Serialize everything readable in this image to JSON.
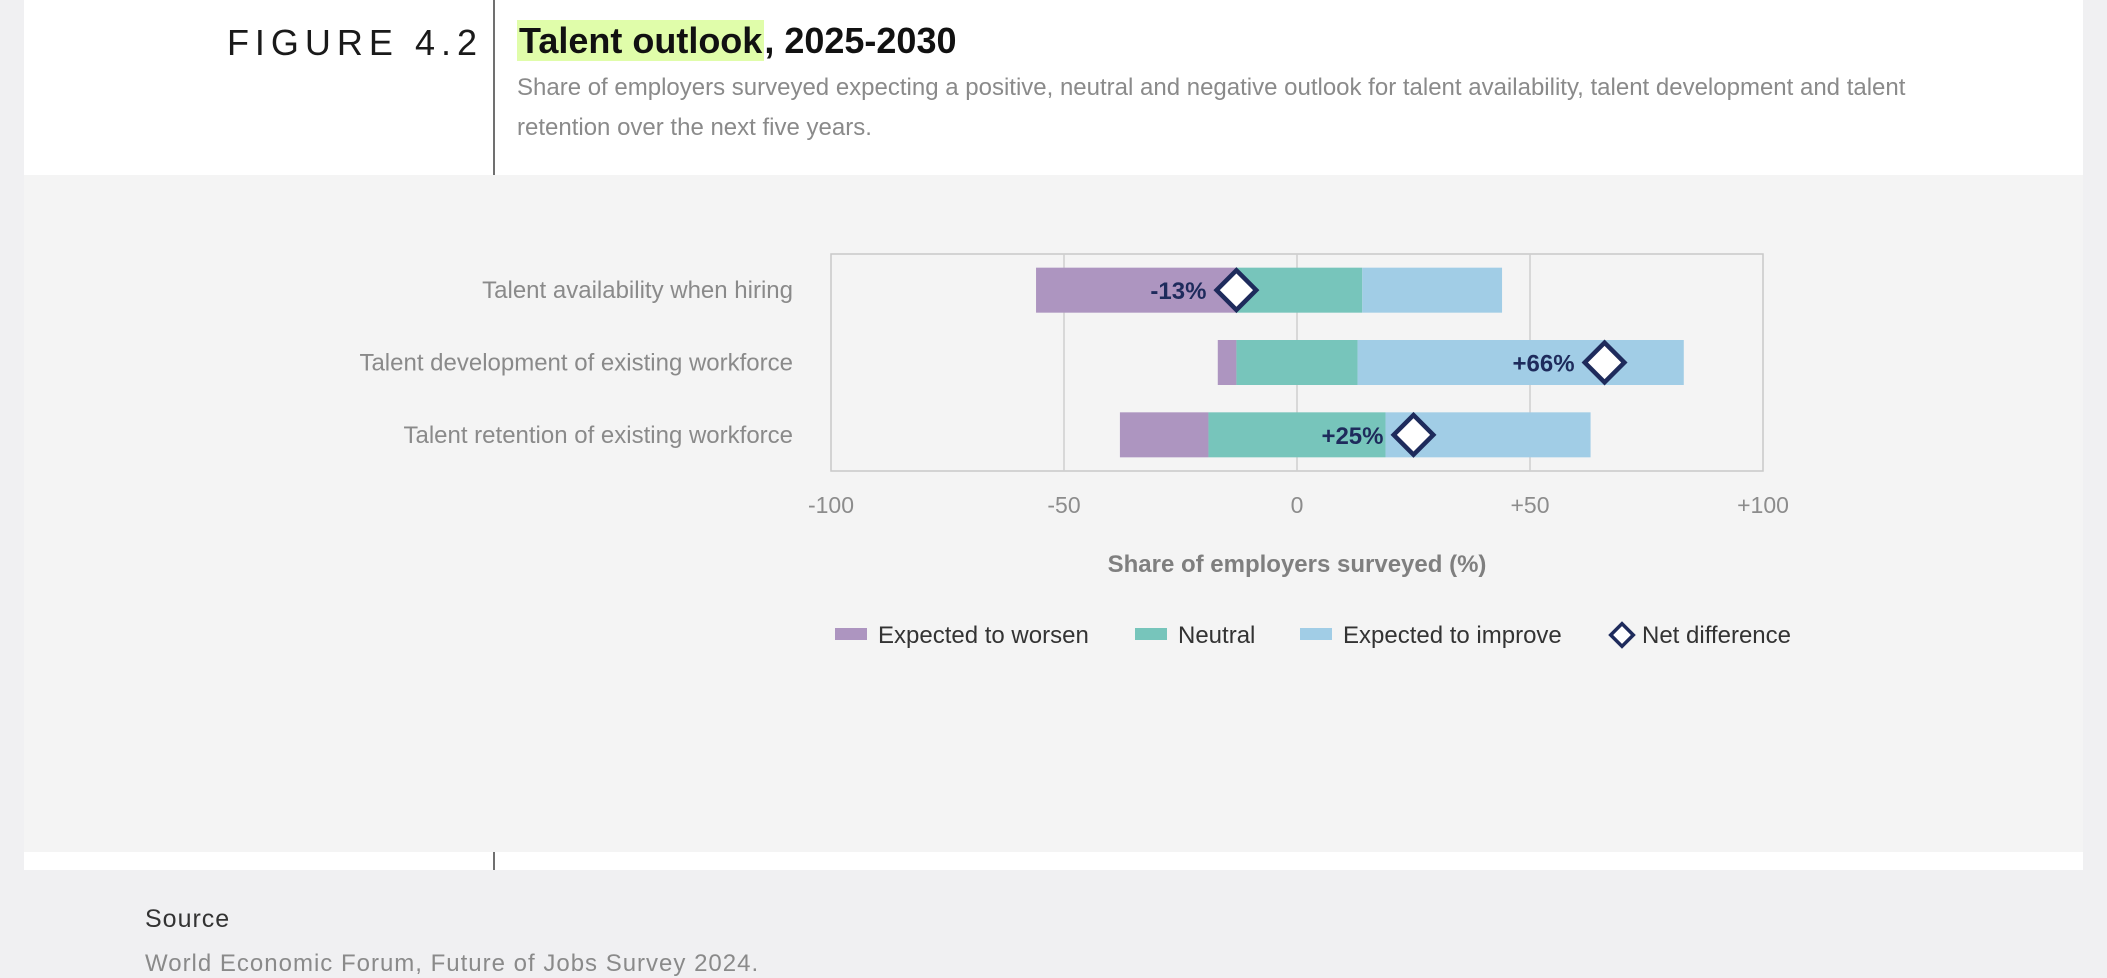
{
  "figure": {
    "label": "FIGURE 4.2",
    "title_highlight": "Talent outlook",
    "title_rest": ", 2025-2030",
    "subtitle": "Share of employers surveyed expecting a positive, neutral and negative outlook for talent availability, talent development and talent retention over the next five years."
  },
  "chart_data": {
    "type": "bar",
    "orientation": "horizontal",
    "stacked": "diverging",
    "categories": [
      "Talent availability when hiring",
      "Talent development of existing workforce",
      "Talent retention of existing workforce"
    ],
    "series": [
      {
        "name": "Expected to worsen",
        "color": "#ad95c0",
        "start": [
          -56,
          -17,
          -38
        ],
        "end": [
          -13,
          -13,
          -19
        ]
      },
      {
        "name": "Neutral",
        "color": "#77c5bb",
        "start": [
          -13,
          -13,
          -19
        ],
        "end": [
          14,
          13,
          19
        ]
      },
      {
        "name": "Expected to improve",
        "color": "#a1cde6",
        "start": [
          14,
          13,
          19
        ],
        "end": [
          44,
          83,
          63
        ]
      }
    ],
    "net_difference": {
      "name": "Net difference",
      "values": [
        -13,
        66,
        25
      ],
      "labels": [
        "-13%",
        "+66%",
        "+25%"
      ],
      "color": "#1e2b5c"
    },
    "xlim": [
      -100,
      100
    ],
    "xticks": [
      -100,
      -50,
      0,
      50,
      100
    ],
    "xtick_labels": [
      "-100",
      "-50",
      "0",
      "+50",
      "+100"
    ],
    "xlabel": "Share of employers surveyed (%)",
    "grid": true,
    "legend_position": "bottom"
  },
  "source": {
    "label": "Source",
    "text": "World Economic Forum, Future of Jobs Survey 2024."
  }
}
